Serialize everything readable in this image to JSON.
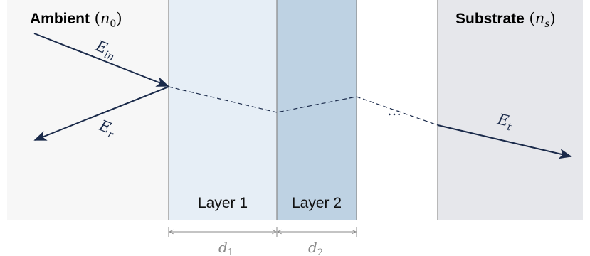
{
  "regions": {
    "ambient": {
      "label_bold": "Ambient",
      "label_sym": "n",
      "label_sub": "0",
      "fill": "#f7f7f7"
    },
    "layer1": {
      "label": "Layer 1",
      "fill": "#e6eef6"
    },
    "layer2": {
      "label": "Layer 2",
      "fill": "#bed2e3"
    },
    "substrate": {
      "label_bold": "Substrate",
      "label_sym": "n",
      "label_sub": "s",
      "fill": "#e6e7eb"
    }
  },
  "waves": {
    "incident": {
      "sym": "E",
      "sub": "in"
    },
    "reflected": {
      "sym": "E",
      "sub": "r"
    },
    "transmitted": {
      "sym": "E",
      "sub": "t"
    },
    "ellipsis": "…"
  },
  "thickness": {
    "d1": {
      "sym": "d",
      "sub": "1"
    },
    "d2": {
      "sym": "d",
      "sub": "2"
    }
  },
  "colors": {
    "arrow": "#1a2a4a",
    "boundary": "#888888",
    "dimension": "#8a8a8a"
  }
}
